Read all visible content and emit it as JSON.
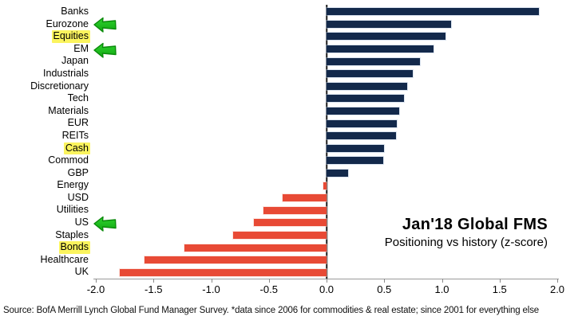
{
  "chart_data": {
    "type": "bar",
    "orientation": "horizontal",
    "title": "Jan'18 Global FMS",
    "subtitle": "Positioning vs history (z-score)",
    "xlabel": "",
    "ylabel": "",
    "xlim": [
      -2.0,
      2.0
    ],
    "x_ticks": [
      "-2.0",
      "-1.5",
      "-1.0",
      "-0.5",
      "0.0",
      "0.5",
      "1.0",
      "1.5",
      "2.0"
    ],
    "grid": false,
    "legend": false,
    "categories": [
      "Banks",
      "Eurozone",
      "Equities",
      "EM",
      "Japan",
      "Industrials",
      "Discretionary",
      "Tech",
      "Materials",
      "EUR",
      "REITs",
      "Cash",
      "Commod",
      "GBP",
      "Energy",
      "USD",
      "Utilities",
      "US",
      "Staples",
      "Bonds",
      "Healthcare",
      "UK"
    ],
    "values": [
      1.84,
      1.08,
      1.03,
      0.93,
      0.81,
      0.75,
      0.7,
      0.67,
      0.63,
      0.61,
      0.6,
      0.5,
      0.49,
      0.19,
      -0.03,
      -0.38,
      -0.55,
      -0.63,
      -0.81,
      -1.23,
      -1.58,
      -1.79
    ],
    "highlighted_categories": [
      "Equities",
      "Cash",
      "Bonds"
    ],
    "arrow_categories": [
      "Eurozone",
      "EM",
      "US"
    ],
    "colors": {
      "positive_bar": "#13294b",
      "negative_bar": "#e84a35",
      "highlight_background": "#fbf45e",
      "arrow_fill": "#2ed32e",
      "arrow_fill_dark": "#12a812",
      "arrow_stroke": "#0a8a0a",
      "axis_line": "#9a9a9a",
      "zero_line": "#1e1e1e"
    }
  },
  "source_note": "Source: BofA Merrill Lynch Global Fund Manager Survey. *data since 2006 for commodities & real estate; since 2001 for everything else"
}
